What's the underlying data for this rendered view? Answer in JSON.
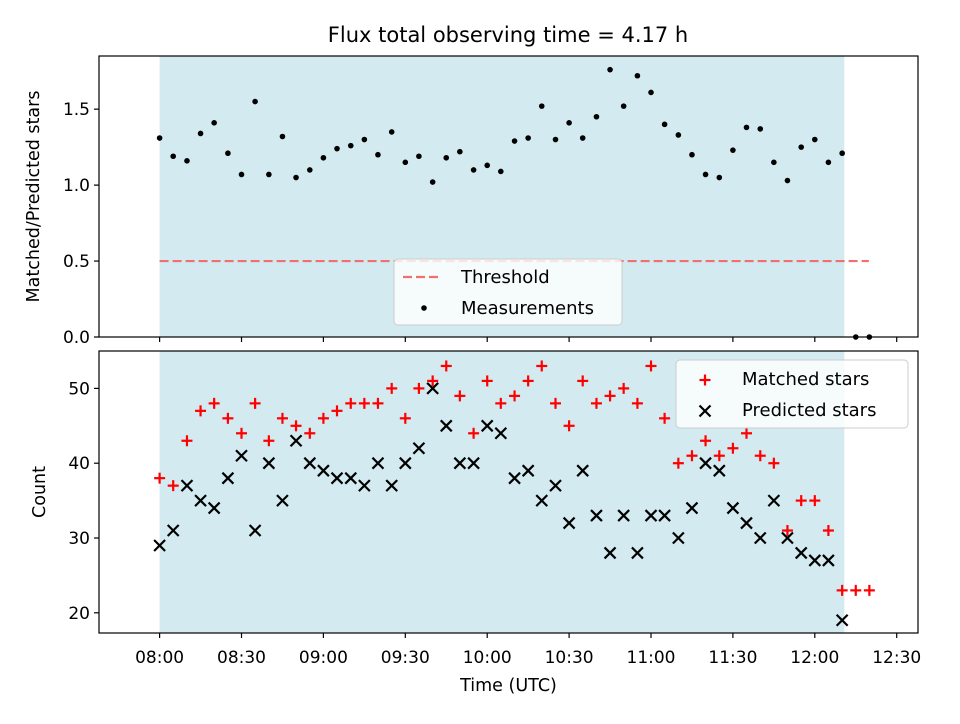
{
  "chart_data": [
    {
      "type": "scatter",
      "panel": "top",
      "title": "Flux total observing time = 4.17 h",
      "xlabel": "",
      "ylabel": "Matched/Predicted stars",
      "xlim_hours": [
        7.63,
        12.63
      ],
      "ylim": [
        0,
        1.85
      ],
      "xticks": [
        "08:00",
        "08:30",
        "09:00",
        "09:30",
        "10:00",
        "10:30",
        "11:00",
        "11:30",
        "12:00",
        "12:30"
      ],
      "yticks": [
        "0.0",
        "0.5",
        "1.0",
        "1.5"
      ],
      "shaded_interval_hours": [
        8.0,
        12.18
      ],
      "shade_color": "#d3eaf1",
      "threshold": {
        "name": "Threshold",
        "value": 0.5,
        "x_range_hours": [
          8.0,
          12.33
        ],
        "color": "#f07070"
      },
      "legend_location": "lower-center",
      "series": [
        {
          "name": "Measurements",
          "marker": "dot",
          "color": "#000000",
          "x_hours": [
            8.0,
            8.083,
            8.167,
            8.25,
            8.333,
            8.417,
            8.5,
            8.583,
            8.667,
            8.75,
            8.833,
            8.917,
            9.0,
            9.083,
            9.167,
            9.25,
            9.333,
            9.417,
            9.5,
            9.583,
            9.667,
            9.75,
            9.833,
            9.917,
            10.0,
            10.083,
            10.167,
            10.25,
            10.333,
            10.417,
            10.5,
            10.583,
            10.667,
            10.75,
            10.833,
            10.917,
            11.0,
            11.083,
            11.167,
            11.25,
            11.333,
            11.417,
            11.5,
            11.583,
            11.667,
            11.75,
            11.833,
            11.917,
            12.0,
            12.083,
            12.167,
            12.25,
            12.333
          ],
          "values": [
            1.31,
            1.19,
            1.16,
            1.34,
            1.41,
            1.21,
            1.07,
            1.55,
            1.07,
            1.32,
            1.05,
            1.1,
            1.18,
            1.24,
            1.26,
            1.3,
            1.2,
            1.35,
            1.15,
            1.19,
            1.02,
            1.18,
            1.22,
            1.1,
            1.13,
            1.09,
            1.29,
            1.31,
            1.52,
            1.3,
            1.41,
            1.31,
            1.45,
            1.76,
            1.52,
            1.72,
            1.61,
            1.4,
            1.33,
            1.2,
            1.07,
            1.05,
            1.23,
            1.38,
            1.37,
            1.15,
            1.03,
            1.25,
            1.3,
            1.15,
            1.21,
            0.0,
            0.0
          ]
        }
      ]
    },
    {
      "type": "scatter",
      "panel": "bottom",
      "title": "",
      "xlabel": "Time (UTC)",
      "ylabel": "Count",
      "xlim_hours": [
        7.63,
        12.63
      ],
      "ylim": [
        17.3,
        55
      ],
      "xticks": [
        "08:00",
        "08:30",
        "09:00",
        "09:30",
        "10:00",
        "10:30",
        "11:00",
        "11:30",
        "12:00",
        "12:30"
      ],
      "yticks": [
        "20",
        "30",
        "40",
        "50"
      ],
      "shaded_interval_hours": [
        8.0,
        12.18
      ],
      "legend_location": "upper-right",
      "series": [
        {
          "name": "Matched stars",
          "marker": "plus",
          "color": "#ff0000",
          "x_hours": [
            8.0,
            8.083,
            8.167,
            8.25,
            8.333,
            8.417,
            8.5,
            8.583,
            8.667,
            8.75,
            8.833,
            8.917,
            9.0,
            9.083,
            9.167,
            9.25,
            9.333,
            9.417,
            9.5,
            9.583,
            9.667,
            9.75,
            9.833,
            9.917,
            10.0,
            10.083,
            10.167,
            10.25,
            10.333,
            10.417,
            10.5,
            10.583,
            10.667,
            10.75,
            10.833,
            10.917,
            11.0,
            11.083,
            11.167,
            11.25,
            11.333,
            11.417,
            11.5,
            11.583,
            11.667,
            11.75,
            11.833,
            11.917,
            12.0,
            12.083,
            12.167,
            12.25,
            12.333
          ],
          "values": [
            38,
            37,
            43,
            47,
            48,
            46,
            44,
            48,
            43,
            46,
            45,
            44,
            46,
            47,
            48,
            48,
            48,
            50,
            46,
            50,
            51,
            53,
            49,
            44,
            51,
            48,
            49,
            51,
            53,
            48,
            45,
            51,
            48,
            49,
            50,
            48,
            53,
            46,
            40,
            41,
            43,
            41,
            42,
            44,
            41,
            40,
            31,
            35,
            35,
            31,
            23,
            23,
            23
          ]
        },
        {
          "name": "Predicted stars",
          "marker": "x",
          "color": "#000000",
          "x_hours": [
            8.0,
            8.083,
            8.167,
            8.25,
            8.333,
            8.417,
            8.5,
            8.583,
            8.667,
            8.75,
            8.833,
            8.917,
            9.0,
            9.083,
            9.167,
            9.25,
            9.333,
            9.417,
            9.5,
            9.583,
            9.667,
            9.75,
            9.833,
            9.917,
            10.0,
            10.083,
            10.167,
            10.25,
            10.333,
            10.417,
            10.5,
            10.583,
            10.667,
            10.75,
            10.833,
            10.917,
            11.0,
            11.083,
            11.167,
            11.25,
            11.333,
            11.417,
            11.5,
            11.583,
            11.667,
            11.75,
            11.833,
            11.917,
            12.0,
            12.083,
            12.167
          ],
          "values": [
            29,
            31,
            37,
            35,
            34,
            38,
            41,
            31,
            40,
            35,
            43,
            40,
            39,
            38,
            38,
            37,
            40,
            37,
            40,
            42,
            50,
            45,
            40,
            40,
            45,
            44,
            38,
            39,
            35,
            37,
            32,
            39,
            33,
            28,
            33,
            28,
            33,
            33,
            30,
            34,
            40,
            39,
            34,
            32,
            30,
            35,
            30,
            28,
            27,
            27,
            19
          ]
        }
      ]
    }
  ]
}
